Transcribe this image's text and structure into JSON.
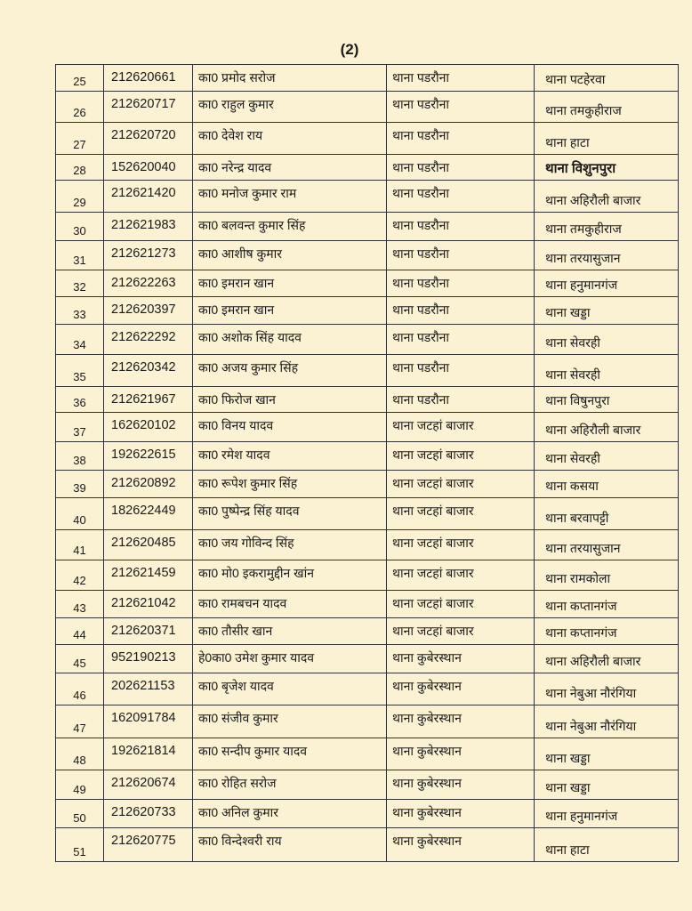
{
  "page_label": "(2)",
  "rows": [
    {
      "sno": "25",
      "pno": "212620661",
      "name": "का0 प्रमोद सरोज",
      "from": "थाना पडरौना",
      "to": "थाना पटहेरवा"
    },
    {
      "sno": "26",
      "pno": "212620717",
      "name": "का0 राहुल कुमार",
      "from": "थाना पडरौना",
      "to": "थाना तमकुहीराज"
    },
    {
      "sno": "27",
      "pno": "212620720",
      "name": "का0 देवेश राय",
      "from": "थाना पडरौना",
      "to": "थाना हाटा"
    },
    {
      "sno": "28",
      "pno": "152620040",
      "name": "का0 नरेन्द्र यादव",
      "from": "थाना पडरौना",
      "to": "थाना विशुनपुरा"
    },
    {
      "sno": "29",
      "pno": "212621420",
      "name": "का0 मनोज कुमार राम",
      "from": "थाना पडरौना",
      "to": "थाना अहिरौली बाजार"
    },
    {
      "sno": "30",
      "pno": "212621983",
      "name": "का0 बलवन्त कुमार सिंह",
      "from": "थाना पडरौना",
      "to": "थाना तमकुहीराज"
    },
    {
      "sno": "31",
      "pno": "212621273",
      "name": "का0 आशीष कुमार",
      "from": "थाना पडरौना",
      "to": "थाना तरयासुजान"
    },
    {
      "sno": "32",
      "pno": "212622263",
      "name": "का0 इमरान खान",
      "from": "थाना पडरौना",
      "to": "थाना हनुमानगंज"
    },
    {
      "sno": "33",
      "pno": "212620397",
      "name": "का0 इमरान खान",
      "from": "थाना पडरौना",
      "to": "थाना खड्डा"
    },
    {
      "sno": "34",
      "pno": "212622292",
      "name": "का0 अशोक सिंह यादव",
      "from": "थाना पडरौना",
      "to": "थाना सेवरही"
    },
    {
      "sno": "35",
      "pno": "212620342",
      "name": "का0 अजय कुमार सिंह",
      "from": "थाना पडरौना",
      "to": "थाना सेवरही"
    },
    {
      "sno": "36",
      "pno": "212621967",
      "name": "का0 फिरोज खान",
      "from": "थाना पडरौना",
      "to": "थाना विषुनपुरा"
    },
    {
      "sno": "37",
      "pno": "162620102",
      "name": "का0 विनय यादव",
      "from": "थाना जटहां बाजार",
      "to": "थाना अहिरौली बाजार"
    },
    {
      "sno": "38",
      "pno": "192622615",
      "name": "का0 रमेश यादव",
      "from": "थाना जटहां बाजार",
      "to": "थाना सेवरही"
    },
    {
      "sno": "39",
      "pno": "212620892",
      "name": "का0 रूपेश कुमार सिंह",
      "from": "थाना जटहां बाजार",
      "to": "थाना कसया"
    },
    {
      "sno": "40",
      "pno": "182622449",
      "name": "का0 पुष्पेन्द्र सिंह यादव",
      "from": "थाना जटहां बाजार",
      "to": "थाना बरवापट्टी"
    },
    {
      "sno": "41",
      "pno": "212620485",
      "name": "का0 जय गोविन्द सिंह",
      "from": "थाना जटहां बाजार",
      "to": "थाना तरयासुजान"
    },
    {
      "sno": "42",
      "pno": "212621459",
      "name": "का0 मो0 इकरामुद्दीन खांन",
      "from": "थाना जटहां बाजार",
      "to": "थाना रामकोला"
    },
    {
      "sno": "43",
      "pno": "212621042",
      "name": "का0 रामबचन यादव",
      "from": "थाना जटहां बाजार",
      "to": "थाना कप्तानगंज"
    },
    {
      "sno": "44",
      "pno": "212620371",
      "name": "का0 तौसीर खान",
      "from": "थाना जटहां बाजार",
      "to": "थाना कप्तानगंज"
    },
    {
      "sno": "45",
      "pno": "952190213",
      "name": "हे0का0 उमेश कुमार यादव",
      "from": "थाना कुबेरस्थान",
      "to": "थाना अहिरौली बाजार"
    },
    {
      "sno": "46",
      "pno": "202621153",
      "name": "का0 बृजेश यादव",
      "from": "थाना कुबेरस्थान",
      "to": "थाना नेबुआ नौरंगिया"
    },
    {
      "sno": "47",
      "pno": "162091784",
      "name": "का0 संजीव कुमार",
      "from": "थाना कुबेरस्थान",
      "to": "थाना नेबुआ नौरंगिया"
    },
    {
      "sno": "48",
      "pno": "192621814",
      "name": "का0 सन्दीप कुमार यादव",
      "from": "थाना कुबेरस्थान",
      "to": "थाना खड्डा"
    },
    {
      "sno": "49",
      "pno": "212620674",
      "name": "का0 रोहित सरोज",
      "from": "थाना कुबेरस्थान",
      "to": "थाना खड्डा"
    },
    {
      "sno": "50",
      "pno": "212620733",
      "name": "का0 अनिल कुमार",
      "from": "थाना कुबेरस्थान",
      "to": "थाना हनुमानगंज"
    },
    {
      "sno": "51",
      "pno": "212620775",
      "name": "का0 विन्देश्वरी राय",
      "from": "थाना कुबेरस्थान",
      "to": "थाना हाटा"
    }
  ]
}
